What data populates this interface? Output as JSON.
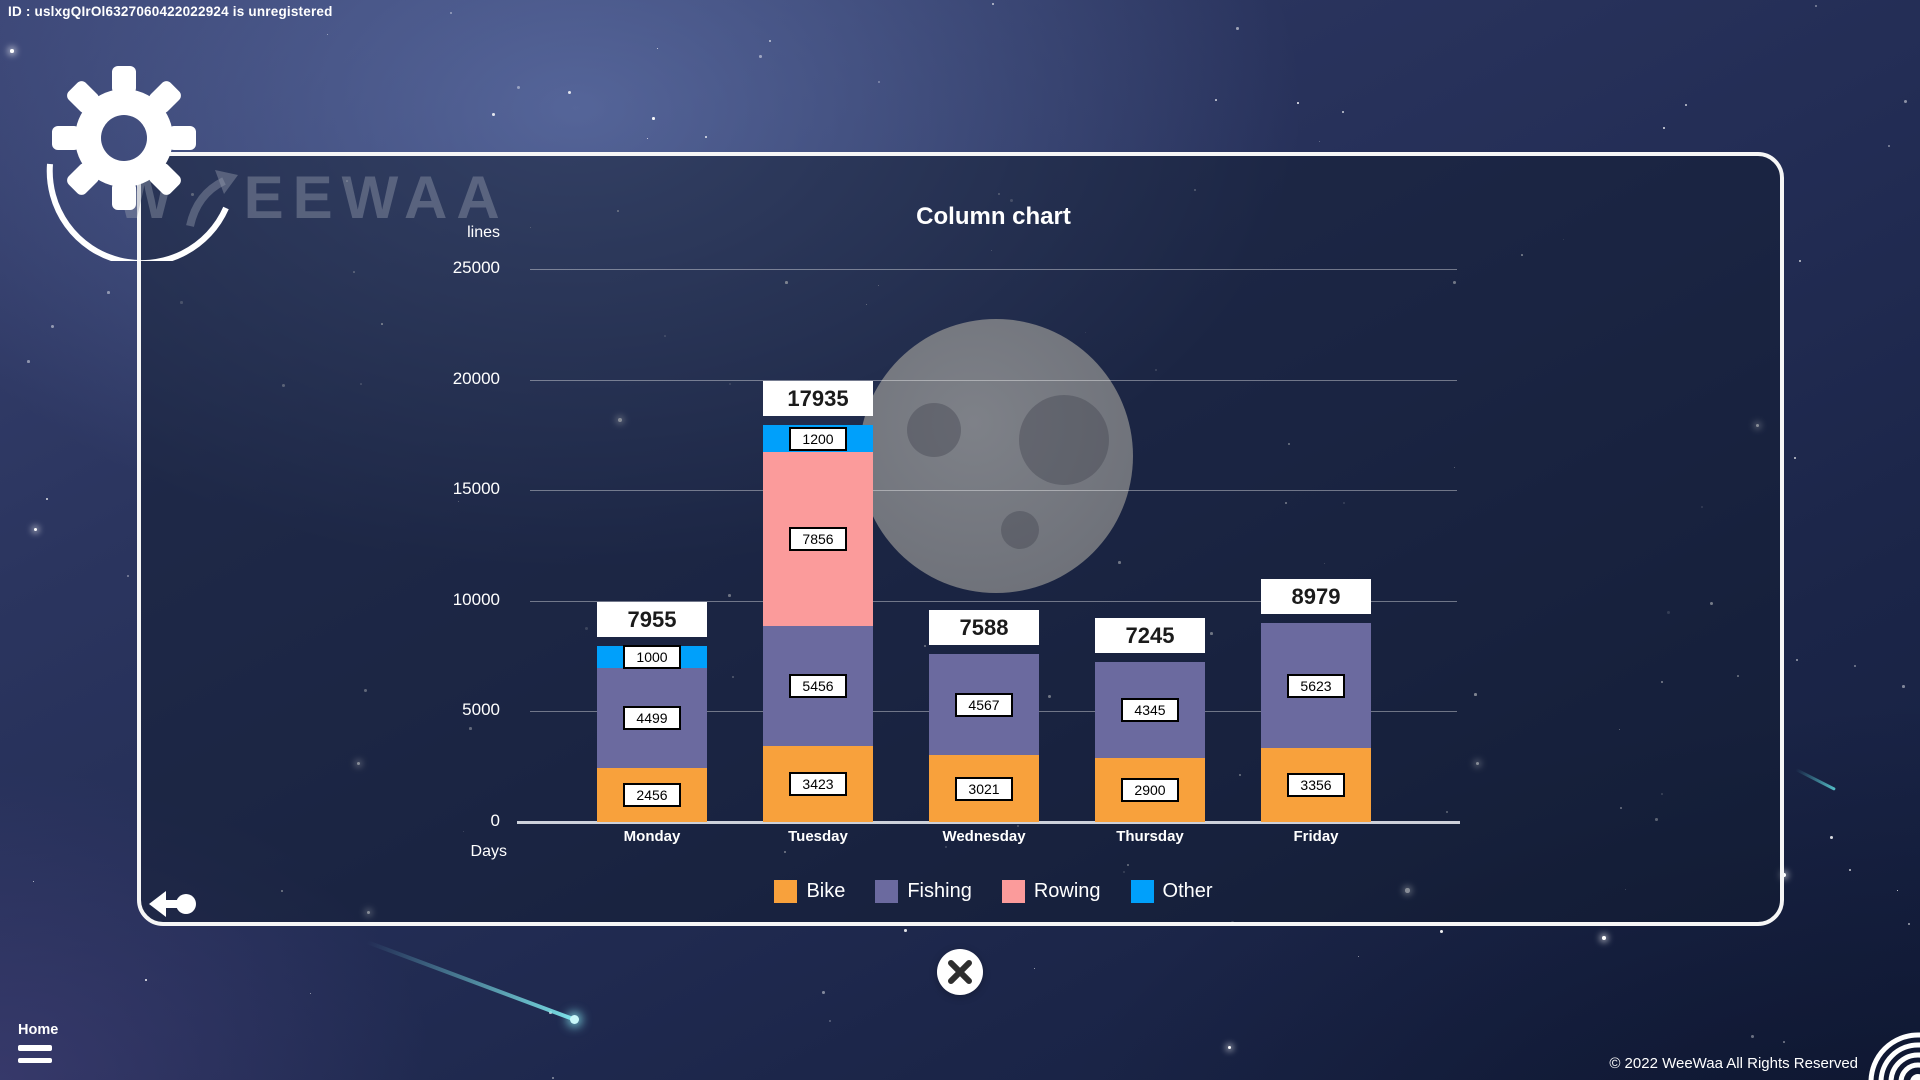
{
  "header": {
    "id_text": "ID : uslxgQIrOl6327060422022924 is unregistered",
    "brand_monogram": "W",
    "brand": "EEWAA"
  },
  "chart_data": {
    "type": "bar",
    "stacked": true,
    "title": "Column chart",
    "ylabel": "lines",
    "xlabel": "Days",
    "categories": [
      "Monday",
      "Tuesday",
      "Wednesday",
      "Thursday",
      "Friday"
    ],
    "series": [
      {
        "name": "Bike",
        "color": "#F8A13C",
        "values": [
          2456,
          3423,
          3021,
          2900,
          3356
        ]
      },
      {
        "name": "Fishing",
        "color": "#6B6A9F",
        "values": [
          4499,
          5456,
          4567,
          4345,
          5623
        ]
      },
      {
        "name": "Rowing",
        "color": "#FB9B9B",
        "values": [
          0,
          7856,
          0,
          0,
          0
        ]
      },
      {
        "name": "Other",
        "color": "#00A0FB",
        "values": [
          1000,
          1200,
          0,
          0,
          0
        ]
      }
    ],
    "totals": [
      7955,
      17935,
      7588,
      7245,
      8979
    ],
    "y_ticks": [
      0,
      5000,
      10000,
      15000,
      20000,
      25000
    ],
    "ylim": [
      0,
      25000
    ],
    "grid": true,
    "legend_position": "bottom"
  },
  "footer": {
    "home_label": "Home",
    "copyright": "© 2022 WeeWaa All Rights Reserved"
  }
}
